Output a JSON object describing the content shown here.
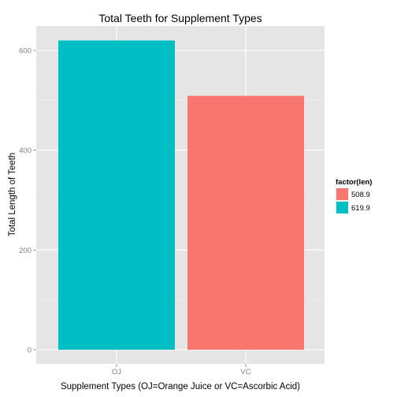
{
  "chart_data": {
    "type": "bar",
    "title": "Total Teeth for Supplement Types",
    "xlabel": "Supplement Types (OJ=Orange Juice or VC=Ascorbic Acid)",
    "ylabel": "Total Length of Teeth",
    "categories": [
      "OJ",
      "VC"
    ],
    "values": [
      619.9,
      508.9
    ],
    "bar_fill_keys": [
      "619.9",
      "508.9"
    ],
    "ylim": [
      0,
      650
    ],
    "yticks": [
      0,
      200,
      400,
      600
    ],
    "grid": true,
    "panel_background": "#e5e5e5",
    "legend": {
      "title": "factor(len)",
      "placement": "right",
      "entries": [
        {
          "label": "508.9",
          "color": "#f8766d"
        },
        {
          "label": "619.9",
          "color": "#00bfc4"
        }
      ]
    }
  }
}
